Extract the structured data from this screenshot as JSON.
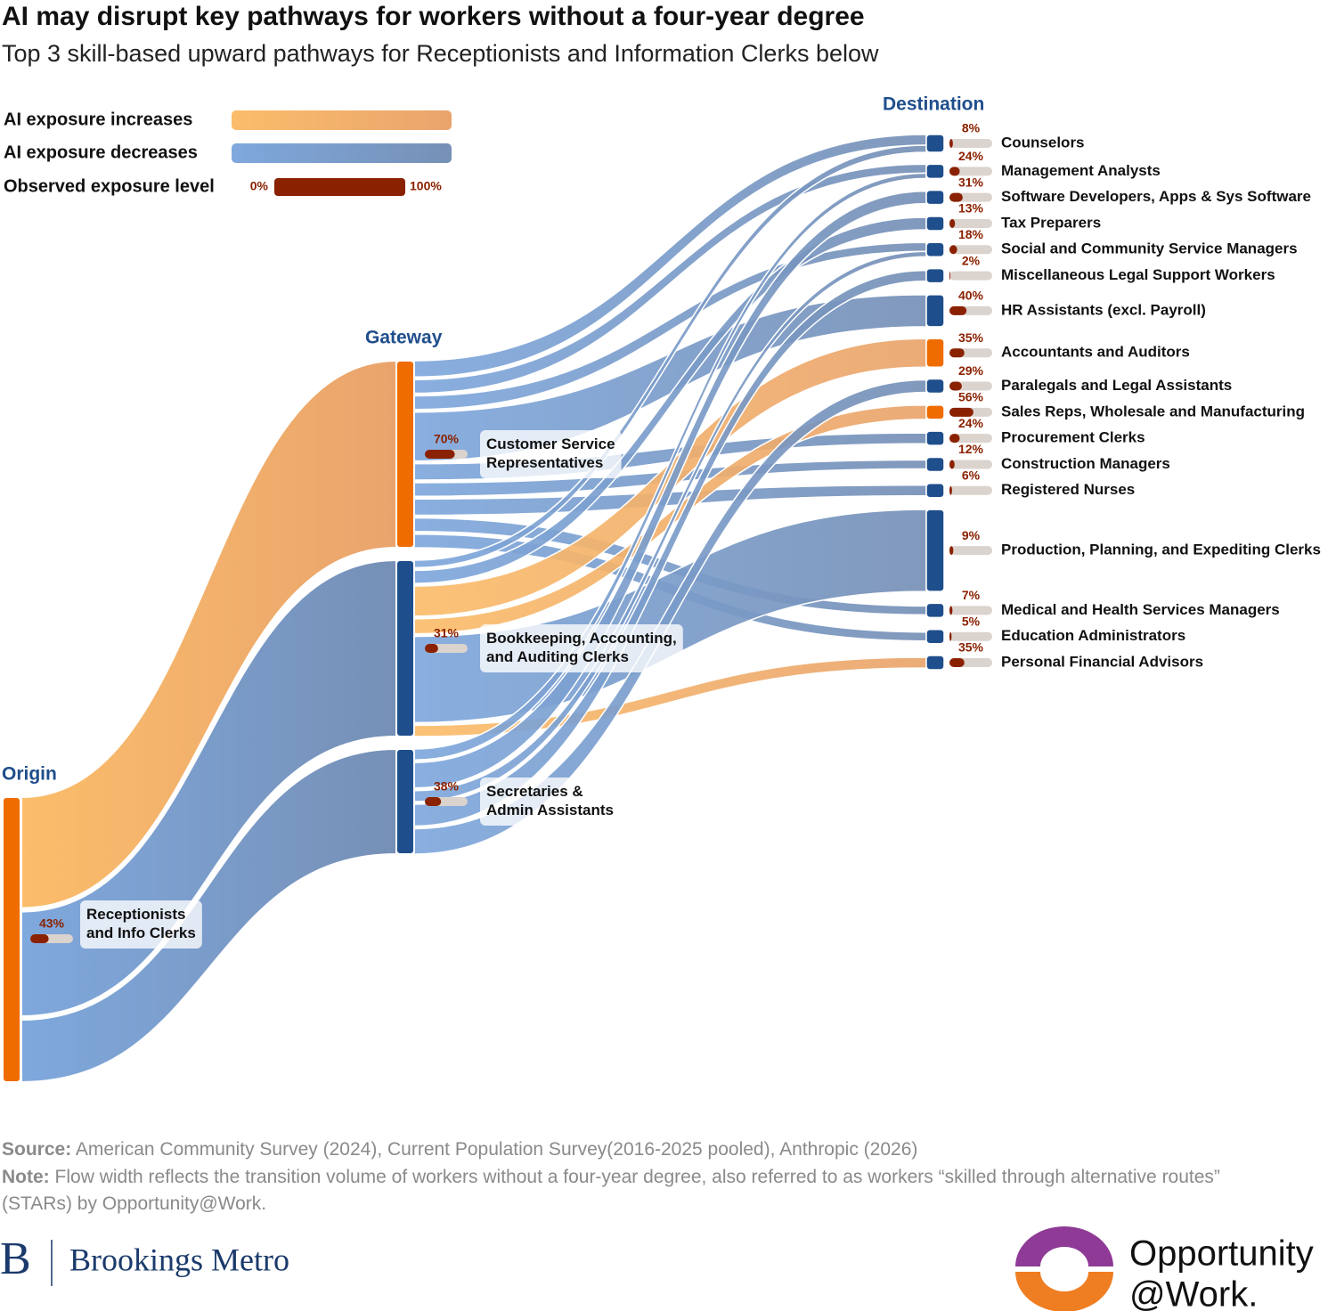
{
  "chart_data": {
    "type": "sankey",
    "title": "AI may disrupt key pathways for workers without a four-year degree",
    "subtitle": "Top 3 skill-based upward pathways for Receptionists and Information Clerks below",
    "legend": {
      "increase": "AI exposure increases",
      "decrease": "AI exposure decreases",
      "exposure": "Observed exposure level",
      "exposure_range": [
        {
          "value": 0,
          "label": "0%"
        },
        {
          "value": 100,
          "label": "100%"
        }
      ]
    },
    "colors": {
      "increase": [
        "#fbbd6b",
        "#e9a46d"
      ],
      "decrease": [
        "#7fa8dd",
        "#7690b6"
      ],
      "exposure": "#8a2100",
      "track": "#dbd3cd",
      "header": "#1f4e8c"
    },
    "origin": {
      "header": "Origin",
      "labels": [
        [
          "Receptionists",
          "and Info Clerks"
        ]
      ],
      "values": [
        43
      ],
      "value_labels": [
        "43%"
      ],
      "node_colors": [
        "#ef6c00"
      ]
    },
    "gateway": {
      "header": "Gateway",
      "labels": [
        [
          "Customer Service",
          "Representatives"
        ],
        [
          "Bookkeeping, Accounting,",
          "and Auditing Clerks"
        ],
        [
          "Secretaries &",
          "Admin Assistants"
        ]
      ],
      "values": [
        70,
        31,
        38
      ],
      "value_labels": [
        "70%",
        "31%",
        "38%"
      ],
      "node_colors": [
        "#ef6c00",
        "#1f4e8c",
        "#1f4e8c"
      ]
    },
    "destination": {
      "header": "Destination",
      "labels": [
        "Counselors",
        "Management Analysts",
        "Software Developers, Apps & Sys Software",
        "Tax Preparers",
        "Social and Community Service Managers",
        "Miscellaneous Legal Support Workers",
        "HR Assistants (excl. Payroll)",
        "Accountants and Auditors",
        "Paralegals and Legal Assistants",
        "Sales Reps, Wholesale and Manufacturing",
        "Procurement Clerks",
        "Construction Managers",
        "Registered Nurses",
        "Production, Planning, and Expediting Clerks",
        "Medical and Health Services Managers",
        "Education Administrators",
        "Personal Financial Advisors"
      ],
      "values": [
        8,
        24,
        31,
        13,
        18,
        2,
        40,
        35,
        29,
        56,
        24,
        12,
        6,
        9,
        7,
        5,
        35
      ],
      "value_labels": [
        "8%",
        "24%",
        "31%",
        "13%",
        "18%",
        "2%",
        "40%",
        "35%",
        "29%",
        "56%",
        "24%",
        "12%",
        "6%",
        "9%",
        "7%",
        "5%",
        "35%"
      ],
      "node_colors": [
        "#1f4e8c",
        "#1f4e8c",
        "#1f4e8c",
        "#1f4e8c",
        "#1f4e8c",
        "#1f4e8c",
        "#1f4e8c",
        "#ef6c00",
        "#1f4e8c",
        "#ef6c00",
        "#1f4e8c",
        "#1f4e8c",
        "#1f4e8c",
        "#1f4e8c",
        "#1f4e8c",
        "#1f4e8c",
        "#1f4e8c"
      ]
    },
    "origin_flows": [
      210,
      198,
      118
    ],
    "flows": [
      [
        12,
        10,
        null,
        null,
        10,
        null,
        36,
        null,
        null,
        null,
        12,
        10,
        12,
        null,
        10,
        10,
        null
      ],
      [
        8,
        null,
        null,
        14,
        null,
        null,
        null,
        32,
        null,
        16,
        null,
        null,
        null,
        92,
        null,
        null,
        12
      ],
      [
        null,
        6,
        14,
        null,
        6,
        12,
        null,
        null,
        14,
        null,
        null,
        null,
        null,
        null,
        null,
        null,
        null
      ]
    ]
  },
  "footer": {
    "source_label": "Source:",
    "source": "American Community Survey (2024), Current Population Survey(2016-2025 pooled), Anthropic (2026)",
    "note_label": "Note:",
    "note": "Flow width reflects the transition volume of workers without a four-year degree, also referred to as workers “skilled through alternative routes” (STARs) by Opportunity@Work.",
    "brookings_mark": "B",
    "brookings": "Brookings Metro",
    "opportunity": [
      "Opportunity",
      "@Work."
    ]
  }
}
